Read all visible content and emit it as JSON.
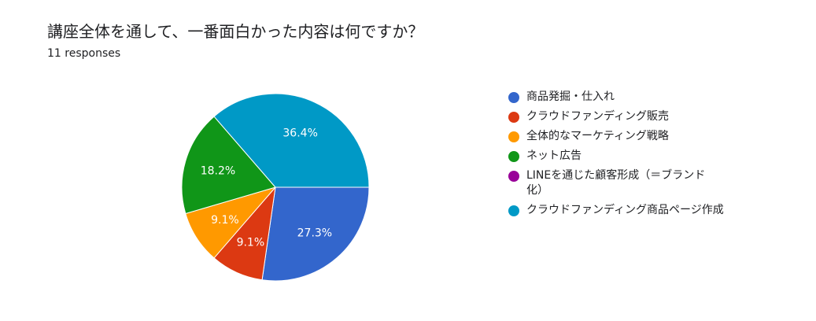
{
  "question": {
    "title": "講座全体を通して、一番面白かった内容は何ですか？",
    "responses": "11 responses"
  },
  "chart_data": {
    "type": "pie",
    "categories": [
      "商品発掘・仕入れ",
      "クラウドファンディング販売",
      "全体的なマーケティング戦略",
      "ネット広告",
      "LINEを通じた顧客形成（＝ブランド化）",
      "クラウドファンディング商品ページ作成"
    ],
    "legend_display": [
      "商品発掘・仕入れ",
      "クラウドファンディング販売",
      "全体的なマーケティング戦略",
      "ネット広告",
      "LINEを通じた顧客形成（＝ブランド\n化）",
      "クラウドファンディング商品ページ作成"
    ],
    "values": [
      3,
      1,
      1,
      2,
      0,
      4
    ],
    "percent_labels": [
      "27.3%",
      "9.1%",
      "9.1%",
      "18.2%",
      "",
      "36.4%"
    ],
    "colors": [
      "#3366cc",
      "#dc3912",
      "#ff9900",
      "#109618",
      "#990099",
      "#0099c6"
    ],
    "legend_position": "right",
    "title": "",
    "xlabel": "",
    "ylabel": ""
  }
}
